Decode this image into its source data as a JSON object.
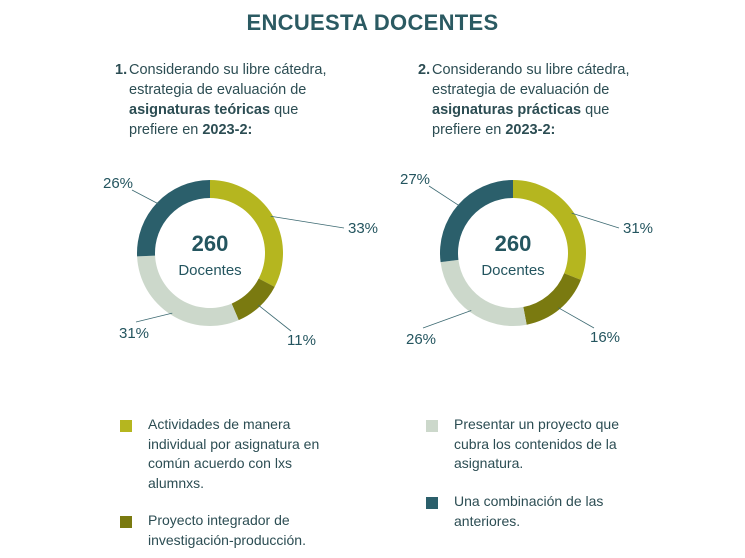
{
  "title": "ENCUESTA DOCENTES",
  "questions": [
    {
      "number": "1.",
      "line1": "Considerando su libre cátedra,",
      "line2": "estrategia de evaluación de",
      "bold3": "asignaturas teóricas",
      "line3_rest": " que",
      "line4": "prefiere en ",
      "bold4": "2023-2:"
    },
    {
      "number": "2.",
      "line1": "Considerando su libre cátedra,",
      "line2": "estrategia de evaluación de",
      "bold3": "asignaturas prácticas",
      "line3_rest": " que",
      "line4": "prefiere en ",
      "bold4": "2023-2:"
    }
  ],
  "center": {
    "number": "260",
    "label": "Docentes"
  },
  "colors": {
    "individual": "#b5b61f",
    "integrador": "#7a7a10",
    "proyecto": "#ccd8cb",
    "combinacion": "#2b5f6b"
  },
  "chart_data": [
    {
      "type": "pie",
      "donut": true,
      "center_text": "260 Docentes",
      "slices": [
        {
          "category": "Actividades de manera individual por asignatura en común acuerdo con lxs alumnxs.",
          "value": 33,
          "label": "33%",
          "color": "#b5b61f"
        },
        {
          "category": "Proyecto integrador de investigación-producción.",
          "value": 11,
          "label": "11%",
          "color": "#7a7a10"
        },
        {
          "category": "Presentar un proyecto que cubra los contenidos de la asignatura.",
          "value": 31,
          "label": "31%",
          "color": "#ccd8cb"
        },
        {
          "category": "Una combinación de las anteriores.",
          "value": 26,
          "label": "26%",
          "color": "#2b5f6b"
        }
      ]
    },
    {
      "type": "pie",
      "donut": true,
      "center_text": "260 Docentes",
      "slices": [
        {
          "category": "Actividades de manera individual por asignatura en común acuerdo con lxs alumnxs.",
          "value": 31,
          "label": "31%",
          "color": "#b5b61f"
        },
        {
          "category": "Proyecto integrador de investigación-producción.",
          "value": 16,
          "label": "16%",
          "color": "#7a7a10"
        },
        {
          "category": "Presentar un proyecto que cubra los contenidos de la asignatura.",
          "value": 26,
          "label": "26%",
          "color": "#ccd8cb"
        },
        {
          "category": "Una combinación de las anteriores.",
          "value": 27,
          "label": "27%",
          "color": "#2b5f6b"
        }
      ]
    }
  ],
  "legend": [
    {
      "text": "Actividades de manera individual por asignatura en común acuerdo con lxs alumnxs.",
      "color": "#b5b61f"
    },
    {
      "text": "Proyecto integrador de investigación-producción.",
      "color": "#7a7a10"
    },
    {
      "text": "Presentar un proyecto que cubra los contenidos de la asignatura.",
      "color": "#ccd8cb"
    },
    {
      "text": "Una combinación de las anteriores.",
      "color": "#2b5f6b"
    }
  ]
}
